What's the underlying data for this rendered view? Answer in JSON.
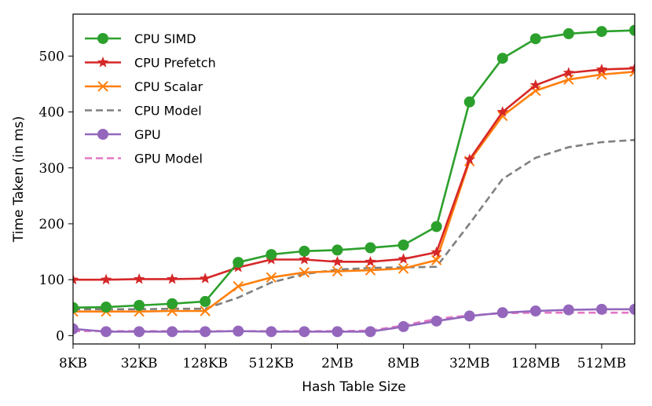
{
  "chart_data": {
    "type": "line",
    "title": "",
    "xlabel": "Hash Table Size",
    "ylabel": "Time Taken (in ms)",
    "x_tick_labels": [
      "8KB",
      "32KB",
      "128KB",
      "512KB",
      "2MB",
      "8MB",
      "32MB",
      "128MB",
      "512MB"
    ],
    "x_tick_positions": [
      0,
      2,
      4,
      6,
      8,
      10,
      12,
      14,
      16
    ],
    "y_ticks": [
      0,
      100,
      200,
      300,
      400,
      500
    ],
    "xlim": [
      0,
      17
    ],
    "ylim": [
      -15,
      575
    ],
    "grid": false,
    "legend_position": "top-left",
    "series": [
      {
        "name": "CPU SIMD",
        "color": "#2ca02c",
        "marker": "circle",
        "linestyle": "solid",
        "x": [
          0,
          1,
          2,
          3,
          4,
          5,
          6,
          7,
          8,
          9,
          10,
          11,
          12,
          13,
          14,
          15,
          16,
          17
        ],
        "values": [
          50,
          51,
          54,
          57,
          61,
          131,
          145,
          151,
          153,
          157,
          162,
          195,
          418,
          496,
          531,
          540,
          544,
          546
        ]
      },
      {
        "name": "CPU Prefetch",
        "color": "#d62728",
        "marker": "star",
        "linestyle": "solid",
        "x": [
          0,
          1,
          2,
          3,
          4,
          5,
          6,
          7,
          8,
          9,
          10,
          11,
          12,
          13,
          14,
          15,
          16,
          17
        ],
        "values": [
          100,
          100,
          101,
          101,
          102,
          122,
          136,
          136,
          132,
          132,
          137,
          149,
          315,
          400,
          448,
          470,
          476,
          478
        ]
      },
      {
        "name": "CPU Scalar",
        "color": "#ff7f0e",
        "marker": "x",
        "linestyle": "solid",
        "x": [
          0,
          1,
          2,
          3,
          4,
          5,
          6,
          7,
          8,
          9,
          10,
          11,
          12,
          13,
          14,
          15,
          16,
          17
        ],
        "values": [
          43,
          43,
          43,
          44,
          44,
          88,
          104,
          113,
          115,
          117,
          120,
          135,
          312,
          393,
          438,
          458,
          467,
          472
        ]
      },
      {
        "name": "CPU Model",
        "color": "#7f7f7f",
        "marker": "none",
        "linestyle": "dashed",
        "x": [
          0,
          1,
          2,
          3,
          4,
          5,
          6,
          7,
          8,
          9,
          10,
          11,
          12,
          13,
          14,
          15,
          16,
          17
        ],
        "values": [
          47,
          47,
          47,
          48,
          48,
          68,
          95,
          110,
          118,
          121,
          122,
          123,
          200,
          280,
          318,
          337,
          346,
          350
        ]
      },
      {
        "name": "GPU",
        "color": "#9467bd",
        "marker": "circle",
        "linestyle": "solid",
        "x": [
          0,
          1,
          2,
          3,
          4,
          5,
          6,
          7,
          8,
          9,
          10,
          11,
          12,
          13,
          14,
          15,
          16,
          17
        ],
        "values": [
          12,
          7,
          7,
          7,
          7,
          8,
          7,
          7,
          7,
          7,
          16,
          26,
          35,
          41,
          44,
          46,
          47,
          47
        ]
      },
      {
        "name": "GPU Model",
        "color": "#e377c2",
        "marker": "none",
        "linestyle": "dashed",
        "x": [
          0,
          1,
          2,
          3,
          4,
          5,
          6,
          7,
          8,
          9,
          10,
          11,
          12,
          13,
          14,
          15,
          16,
          17
        ],
        "values": [
          8,
          8,
          8,
          8,
          8,
          8,
          8,
          8,
          8,
          9,
          18,
          30,
          36,
          40,
          41,
          41,
          41,
          41
        ]
      }
    ]
  }
}
